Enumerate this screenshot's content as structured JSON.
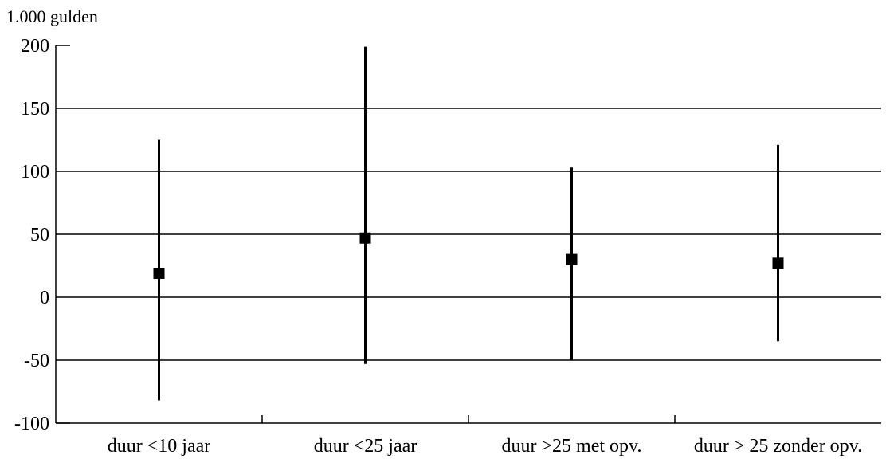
{
  "chart_data": {
    "type": "errorbar",
    "y_unit_label": "1.000 gulden",
    "categories": [
      "duur <10 jaar",
      "duur <25 jaar",
      "duur >25 met opv.",
      "duur > 25 zonder opv."
    ],
    "points": [
      {
        "category": "duur <10 jaar",
        "value": 19,
        "low": -82,
        "high": 125
      },
      {
        "category": "duur <25 jaar",
        "value": 47,
        "low": -53,
        "high": 199
      },
      {
        "category": "duur >25 met opv.",
        "value": 30,
        "low": -50,
        "high": 103
      },
      {
        "category": "duur > 25 zonder opv.",
        "value": 27,
        "low": -35,
        "high": 121
      }
    ],
    "ylim": [
      -100,
      200
    ],
    "yticks": [
      200,
      150,
      100,
      50,
      0,
      -50,
      -100
    ],
    "grid": true,
    "colors": {
      "marker": "#000000",
      "line": "#000000",
      "grid": "#000000"
    }
  }
}
